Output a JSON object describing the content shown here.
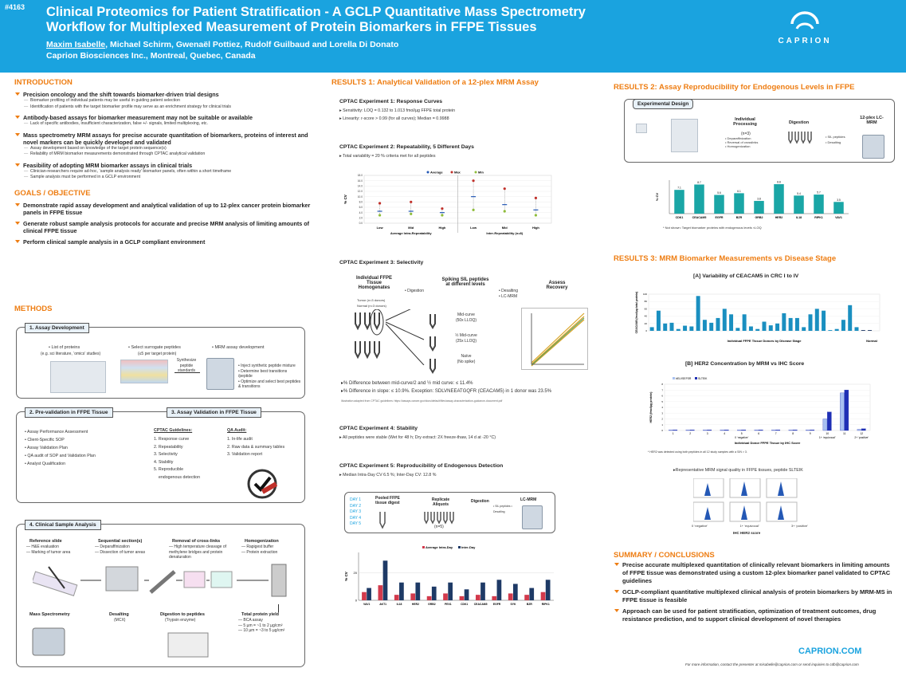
{
  "header": {
    "poster_id": "#4163",
    "title_line1": "Clinical Proteomics for Patient Stratification - A GCLP Quantitative Mass Spectrometry",
    "title_line2": "Workflow for Multiplexed Measurement of Protein Biomarkers in FFPE Tissues",
    "presenter": "Maxim Isabelle",
    "coauthors": ", Michael Schirm, Gwenaël Pottiez, Rudolf Guilbaud and Lorella Di Donato",
    "affiliation": "Caprion Biosciences Inc., Montreal, Quebec, Canada",
    "logo_text": "CAPRION"
  },
  "intro": {
    "heading": "INTRODUCTION",
    "items": [
      {
        "title": "Precision oncology and the shift towards biomarker-driven trial designs",
        "subs": [
          "Biomarker profiling of individual patients may be useful in guiding patient selection",
          "Identification of patients with the target biomarker profile may serve as an enrichment strategy for clinical trials"
        ]
      },
      {
        "title": "Antibody-based assays for biomarker measurement may not be suitable or available",
        "subs": [
          "Lack of specific antibodies, insufficient characterization, false +/- signals, limited multiplexing, etc."
        ]
      },
      {
        "title": "Mass spectrometry MRM assays for precise accurate quantitation of biomarkers, proteins of interest and novel markers can be quickly developed and validated",
        "subs": [
          "Assay development based on knowledge of the target protein sequence(s)",
          "Reliability of MRM biomarker measurements demonstrated through CPTAC analytical validation"
        ]
      },
      {
        "title": "Feasibility of adopting MRM biomarker assays in clinical trials",
        "subs": [
          "Clinician-researchers require ad-hoc, ‘sample analysis ready’ biomarker panels, often within a short timeframe",
          "Sample analysis must be performed in a GCLP environment"
        ]
      }
    ]
  },
  "goals": {
    "heading": "GOALS / OBJECTIVE",
    "items": [
      "Demonstrate rapid assay development and analytical validation of up to 12-plex cancer protein biomarker panels in FFPE tissue",
      "Generate robust sample analysis protocols for accurate and precise MRM analysis of limiting amounts of clinical FFPE tissue",
      "Perform clinical sample analysis in a GCLP compliant environment"
    ]
  },
  "methods": {
    "heading": "METHODS",
    "assay_dev": {
      "tab": "1.  Assay Development",
      "step1": "• List of proteins",
      "step1b": "(e.g. sci literature, ‘omics’ studies)",
      "step2": "• Select surrogate peptides",
      "step2b": "(≤5 per target protein)",
      "step3": "• MRM assay development",
      "synth": "Synthesize peptide standards",
      "notes": [
        "Inject synthetic peptide mixture",
        "Determine best transitions /peptide",
        "Optimize and select best peptides & transitions"
      ]
    },
    "preval": {
      "tab": "2.  Pre-validation in FFPE Tissue",
      "items": [
        "Assay Performance Assessment",
        "Client-Specific SOP",
        "Assay Validation Plan",
        "QA audit of SOP and Validation Plan",
        "Analyst Qualification"
      ]
    },
    "val": {
      "tab": "3.  Assay Validation in FFPE Tissue",
      "cptac_head": "CPTAC Guidelines:",
      "cptac": [
        "1. Response curve",
        "2. Repeatability",
        "3. Selectivity",
        "4. Stability",
        "5. Reproducible",
        "    endogenous detection"
      ],
      "qa_head": "QA Audit:",
      "qa": [
        "1. In-life audit",
        "2. Raw data & summary tables",
        "3. Validation report"
      ]
    },
    "clinical": {
      "tab": "4.  Clinical Sample Analysis",
      "ref": "Reference slide",
      "ref_notes": [
        "H&E evaluation",
        "Marking of tumor area"
      ],
      "seq": "Sequential section(s)",
      "seq_notes": [
        "Deparaffinization",
        "Dissection of tumor areas"
      ],
      "rem": "Removal of cross-links",
      "rem_notes": [
        "High temperature cleavage of methylene bridges and protein denaturation"
      ],
      "homo": "Homogenization",
      "homo_notes": [
        "Rapigest buffer",
        "Protein extraction"
      ],
      "ms": "Mass Spectrometry",
      "desalt": "Desalting",
      "desalt_note": "(MCX)",
      "digest": "Digestion to peptides",
      "digest_note": "(Trypsin enzyme)",
      "yield": "Total protein yield",
      "yield_notes": [
        "BCA assay",
        "5 µm = ~1 to 2 µg/cm²",
        "10 µm = ~3 to 5 µg/cm²"
      ]
    }
  },
  "results1": {
    "heading": "RESULTS 1:  Analytical Validation of a 12-plex MRM Assay",
    "exp1": {
      "title": "CPTAC Experiment 1:  Response Curves",
      "b1": "Sensitivity: LOQ = 0.132 to 1.013 fmol/µg FFPE total protein",
      "b2": "Linearity:  r-score > 0.99 (for all curves); Median = 0.9988"
    },
    "exp2": {
      "title": "CPTAC Experiment 2:  Repeatability, 5 Different Days",
      "b1": "Total variability = 20 % criteria met for all peptides"
    },
    "exp3": {
      "title": "CPTAC Experiment 3:  Selectivity",
      "ind": "Individual FFPE Tissue Homogenates",
      "ind_note": "Tumor (n=3 donors) Normal (n=3 donors)",
      "digestion": "• Digestion",
      "spike": "Spiking SIL peptides at different levels",
      "desalt_notes": [
        "• Desalting",
        "• LC-MRM"
      ],
      "assess": "Assess Recovery",
      "mid": "Mid-curve",
      "mid_n": "(50x LLOQ)",
      "half": "½ Mid-curve",
      "half_n": "(25x LLOQ)",
      "naive": "Naïve",
      "naive_n": "(No spike)",
      "r1": "% Difference between mid-curve/2 and ½ mid curve: ≤ 11.4%",
      "r2": "% Difference in slope: ≤ 10.9%. Exception: SDLVNEEATGQFR (CEACAM5) in 1 donor was 23.5%",
      "src": "Illustration adapted from CPTAC guidelines: https://assays.cancer.gov/docs/default/files/assay-characterization-guidance-document.pdf"
    },
    "exp4": {
      "title": "CPTAC Experiment 4:  Stability",
      "b1": "All peptides were stable (Wet for 48 h; Dry extract: 2X freeze-thaw, 14 d at -20 °C)"
    },
    "exp5": {
      "title": "CPTAC Experiment 5:  Reproducibility of Endogenous Detection",
      "b1": "Median Intra-Day CV 6.5 %; Inter-Day CV: 12.8 %",
      "days": [
        "DAY 1",
        "DAY 2",
        "DAY 3",
        "DAY 4",
        "DAY 5"
      ],
      "pooled": "Pooled FFPE tissue digest",
      "replicate": "Replicate Aliquots",
      "rep_n": "(n=5)",
      "digestion": "Digestion",
      "desalt": "• SIL peptides • Desalting",
      "lcmrm": "LC-MRM"
    }
  },
  "results2": {
    "heading": "RESULTS 2:  Assay Reproducibility for Endogenous Levels in FFPE",
    "design": "Experimental Design",
    "ind": "Individual Processing",
    "ind_n": "(n=3)",
    "ind_notes": [
      "Deparaffinization",
      "Reversal of crosslinks",
      "Homogenization"
    ],
    "digestion": "Digestion",
    "dig_notes": [
      "SIL peptides",
      "Desalting"
    ],
    "plex": "12-plex LC-MRM",
    "note": "* Not shown: Target biomarker proteins with endogenous levels <LOQ"
  },
  "results3": {
    "heading": "RESULTS 3:  MRM Biomarker Measurements vs Disease Stage",
    "a_title": "[A]    Variability of CEACAM5 in CRC I to IV",
    "b_title": "[B]    HER2 Concentration by MRM vs IHC Score",
    "b_note": "* HER2 was detected using both peptides in all 12 study samples with a S/N > 3.",
    "rep": "Representative MRM signal quality in FFPE tissues, peptide SLTEIK",
    "rep_labels": [
      "0 ‘negative’",
      "1+ ‘equivocal’",
      "3+ ‘positive’"
    ],
    "rep_x": "IHC HER2 score"
  },
  "summary": {
    "heading": "SUMMARY / CONCLUSIONS",
    "items": [
      "Precise accurate multiplexed quantitation of clinically relevant biomarkers in limiting amounts of FFPE tissue was demonstrated using a custom 12-plex biomarker panel validated to CPTAC guidelines",
      "GCLP-compliant quantitative multiplexed clinical analysis of protein biomarkers by MRM-MS in FFPE tissue is feasible",
      "Approach can be used for patient stratification, optimization of treatment outcomes, drug resistance prediction, and to support clinical development of novel therapies"
    ],
    "site": "CAPRION.COM",
    "contact": "For more information, contact the presenter at misabelle@caprion.com or send inquiries to cdb@caprion.com"
  },
  "chart_data": [
    {
      "type": "scatter",
      "title": "",
      "ylabel": "% CV",
      "ylim": [
        0,
        18
      ],
      "yticks": [
        "0.0",
        "2.0",
        "4.0",
        "6.0",
        "8.0",
        "10.0",
        "12.0",
        "14.0",
        "16.0",
        "18.0"
      ],
      "legend": [
        "Average",
        "Max",
        "Min"
      ],
      "categories": [
        "Low",
        "Mid",
        "High",
        "Low",
        "Mid",
        "High"
      ],
      "groups": [
        "Average Intra-Repeatability",
        "Inter-Repeatability (n=8)"
      ],
      "series": [
        {
          "name": "Average",
          "values": [
            4.5,
            4.5,
            4,
            10,
            7,
            5
          ]
        },
        {
          "name": "Max",
          "values": [
            7.5,
            8,
            5.5,
            16,
            13,
            9.5
          ]
        },
        {
          "name": "Min",
          "values": [
            3,
            3.5,
            3,
            5,
            4.5,
            3
          ]
        }
      ]
    },
    {
      "type": "bar",
      "ylabel": "% CV",
      "ylim": [
        0,
        35
      ],
      "yticks": [
        "0",
        "20"
      ],
      "legend": [
        "Average Intra-Day",
        "Inter-Day"
      ],
      "categories": [
        "VAV1",
        "AKT1",
        "IL18",
        "HER2",
        "GRB2",
        "PEX1",
        "CDK1",
        "CEACAM5",
        "EGFR",
        "SYK",
        "BZR",
        "RIPK1"
      ],
      "series": [
        {
          "name": "Average Intra-Day",
          "values": [
            6,
            11,
            4,
            5,
            3,
            5,
            3,
            4,
            3,
            5,
            4,
            6
          ]
        },
        {
          "name": "Inter-Day",
          "values": [
            9,
            29,
            13,
            13,
            10,
            13,
            8,
            13,
            15,
            12,
            9,
            15
          ]
        }
      ]
    },
    {
      "type": "bar",
      "ylabel": "% CV",
      "ylim": [
        0,
        10
      ],
      "categories": [
        "CDK1",
        "CEACAM5",
        "EGFR",
        "BZR",
        "GRB2",
        "HER2",
        "IL18",
        "RIPK1",
        "VAV1"
      ],
      "labels": [
        "7.1",
        "8.7",
        "5.6",
        "6.1",
        "3.8",
        "8.8",
        "5.4",
        "5.7",
        "3.5"
      ],
      "series": [
        {
          "name": "",
          "values": [
            7.1,
            8.7,
            5.6,
            6.1,
            3.8,
            8.8,
            5.4,
            5.7,
            3.5
          ]
        }
      ]
    },
    {
      "type": "bar",
      "ylabel": "CEACAM5 (fmol/µg total protein)",
      "xlabel": "Individual FFPE Tissue Donors by Disease Stage",
      "ylim": [
        0,
        100
      ],
      "yticks": [
        "0",
        "20",
        "40",
        "60",
        "80",
        "100"
      ],
      "extra_category": "Normal",
      "values": [
        10,
        55,
        20,
        22,
        5,
        14,
        12,
        95,
        30,
        22,
        35,
        60,
        45,
        8,
        45,
        12,
        5,
        25,
        15,
        20,
        48,
        35,
        35,
        10,
        45,
        60,
        55,
        2,
        5,
        30,
        70,
        10,
        2,
        2
      ]
    },
    {
      "type": "bar",
      "ylabel": "HER2 (fmol/µg protein)",
      "xlabel": "Individual Donor FFPE Tissue by IHC Score",
      "ylim": [
        0,
        8
      ],
      "yticks": [
        "0",
        "1",
        "2",
        "3",
        "4",
        "5",
        "6",
        "7",
        "8"
      ],
      "legend": [
        "bELVSEFSR",
        "SLTEIK"
      ],
      "categories": [
        "1",
        "2",
        "3",
        "4",
        "5",
        "6",
        "7",
        "8",
        "9",
        "10",
        "11",
        "12"
      ],
      "groups": [
        "0 ‘negative’",
        "1+ ‘equivocal’",
        "2+ ‘positive’"
      ],
      "series": [
        {
          "name": "bELVSEFSR",
          "values": [
            0.1,
            0.1,
            0.1,
            0.1,
            0.1,
            0.1,
            0.1,
            0.1,
            0.1,
            2,
            6.5,
            0.2
          ]
        },
        {
          "name": "SLTEIK",
          "values": [
            0.1,
            0.1,
            0.1,
            0.1,
            0.1,
            0.1,
            0.1,
            0.1,
            0.1,
            3.2,
            7,
            0.3
          ]
        }
      ]
    }
  ]
}
